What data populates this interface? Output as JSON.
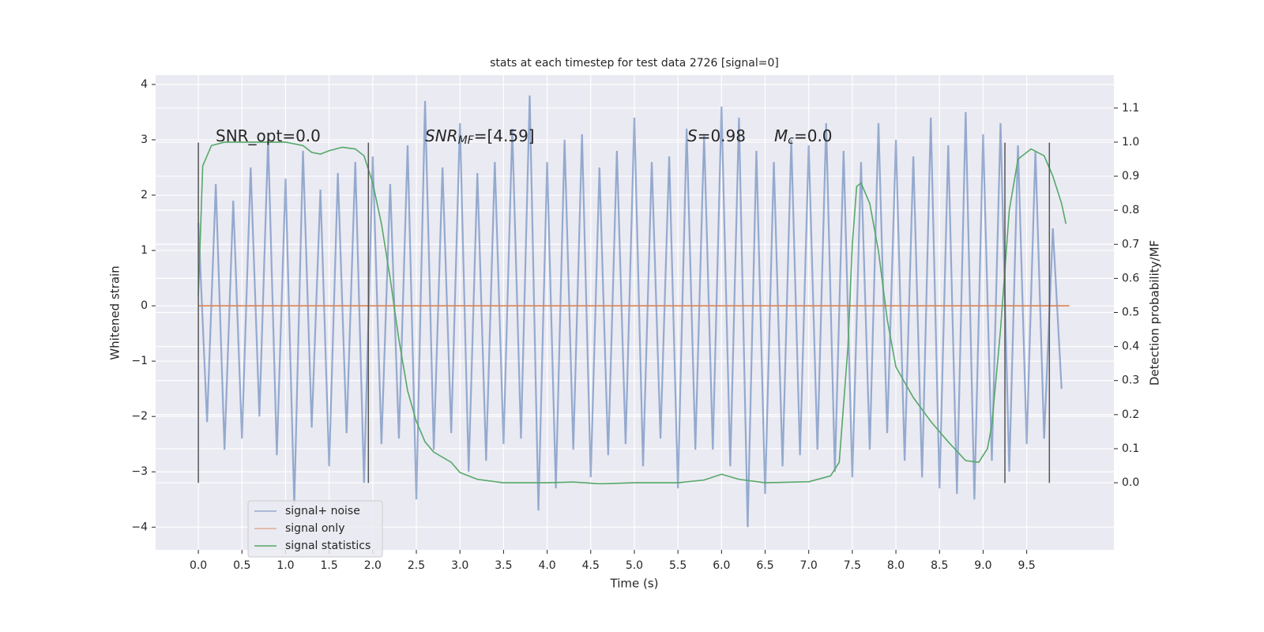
{
  "chart_data": {
    "type": "line",
    "title": "stats at each timestep for test data 2726 [signal=0]",
    "xlabel": "Time (s)",
    "ylabel": "Whitened strain",
    "y2label": "Detection probability/MF",
    "xlim": [
      -0.49,
      10.5
    ],
    "ylim": [
      -4.41,
      4.17
    ],
    "y2lim": [
      -0.197,
      1.197
    ],
    "grid": true,
    "legend": "lower left",
    "xticks": [
      {
        "value": 0,
        "label": "0.0"
      },
      {
        "value": 0.5,
        "label": "0.5"
      },
      {
        "value": 1,
        "label": "1.0"
      },
      {
        "value": 1.5,
        "label": "1.5"
      },
      {
        "value": 2,
        "label": "2.0"
      },
      {
        "value": 2.5,
        "label": "2.5"
      },
      {
        "value": 3,
        "label": "3.0"
      },
      {
        "value": 3.5,
        "label": "3.5"
      },
      {
        "value": 4,
        "label": "4.0"
      },
      {
        "value": 4.5,
        "label": "4.5"
      },
      {
        "value": 5,
        "label": "5.0"
      },
      {
        "value": 5.5,
        "label": "5.5"
      },
      {
        "value": 6,
        "label": "6.0"
      },
      {
        "value": 6.5,
        "label": "6.5"
      },
      {
        "value": 7,
        "label": "7.0"
      },
      {
        "value": 7.5,
        "label": "7.5"
      },
      {
        "value": 8,
        "label": "8.0"
      },
      {
        "value": 8.5,
        "label": "8.5"
      },
      {
        "value": 9,
        "label": "9.0"
      },
      {
        "value": 9.5,
        "label": "9.5"
      }
    ],
    "yticks": [
      {
        "value": -4,
        "label": "−4"
      },
      {
        "value": -3,
        "label": "−3"
      },
      {
        "value": -2,
        "label": "−2"
      },
      {
        "value": -1,
        "label": "−1"
      },
      0,
      1,
      2,
      3,
      4
    ],
    "y2ticks": [
      {
        "value": 0,
        "label": "0.0"
      },
      {
        "value": 0.1,
        "label": "0.1"
      },
      {
        "value": 0.2,
        "label": "0.2"
      },
      {
        "value": 0.3,
        "label": "0.3"
      },
      {
        "value": 0.4,
        "label": "0.4"
      },
      {
        "value": 0.5,
        "label": "0.5"
      },
      {
        "value": 0.6,
        "label": "0.6"
      },
      {
        "value": 0.7,
        "label": "0.7"
      },
      {
        "value": 0.8,
        "label": "0.8"
      },
      {
        "value": 0.9,
        "label": "0.9"
      },
      {
        "value": 1,
        "label": "1.0"
      },
      {
        "value": 1.1,
        "label": "1.1"
      }
    ],
    "annotations": [
      {
        "main": "SNR_opt=0.0"
      },
      {
        "main": "SNR",
        "sub": "MF",
        "rest": "=[4.59]"
      },
      {
        "main": "S",
        "rest": "=0.98"
      },
      {
        "main": "M",
        "sub": "c",
        "rest": "=0.0"
      }
    ],
    "vlines": {
      "x": [
        0,
        1.95,
        9.25,
        9.76
      ],
      "ymin": -3.2,
      "ymax": 2.95,
      "color": "#555555"
    },
    "series": [
      {
        "name": "signal+ noise",
        "color": "#4c72b0",
        "x": [
          0,
          0.1,
          0.2,
          0.3,
          0.4,
          0.5,
          0.6,
          0.7,
          0.8,
          0.9,
          1,
          1.1,
          1.2,
          1.3,
          1.4,
          1.5,
          1.6,
          1.7,
          1.8,
          1.9,
          2,
          2.1,
          2.2,
          2.3,
          2.4,
          2.5,
          2.6,
          2.7,
          2.8,
          2.9,
          3,
          3.1,
          3.2,
          3.3,
          3.4,
          3.5,
          3.6,
          3.7,
          3.8,
          3.9,
          4,
          4.1,
          4.2,
          4.3,
          4.4,
          4.5,
          4.6,
          4.7,
          4.8,
          4.9,
          5,
          5.1,
          5.2,
          5.3,
          5.4,
          5.5,
          5.6,
          5.7,
          5.8,
          5.9,
          6,
          6.1,
          6.2,
          6.3,
          6.4,
          6.5,
          6.6,
          6.7,
          6.8,
          6.9,
          7,
          7.1,
          7.2,
          7.3,
          7.4,
          7.5,
          7.6,
          7.7,
          7.8,
          7.9,
          8,
          8.1,
          8.2,
          8.3,
          8.4,
          8.5,
          8.6,
          8.7,
          8.8,
          8.9,
          9,
          9.1,
          9.2,
          9.3,
          9.4,
          9.5,
          9.6,
          9.7,
          9.8,
          9.9
        ],
        "values": [
          1.5,
          -2.1,
          2.2,
          -2.6,
          1.9,
          -2.4,
          2.5,
          -2.0,
          3.0,
          -2.7,
          2.3,
          -3.6,
          2.8,
          -2.2,
          2.1,
          -2.9,
          2.4,
          -2.3,
          2.6,
          -3.2,
          2.7,
          -2.5,
          2.2,
          -2.4,
          2.9,
          -3.5,
          3.7,
          -2.6,
          2.5,
          -2.3,
          3.3,
          -3.0,
          2.4,
          -2.8,
          2.6,
          -2.5,
          3.2,
          -2.4,
          3.8,
          -3.7,
          2.6,
          -3.3,
          3.0,
          -2.6,
          3.1,
          -3.1,
          2.5,
          -2.7,
          2.8,
          -2.5,
          3.4,
          -2.9,
          2.6,
          -2.4,
          2.7,
          -3.3,
          3.2,
          -2.6,
          3.1,
          -2.6,
          3.6,
          -2.9,
          3.4,
          -4.0,
          2.8,
          -3.4,
          2.6,
          -2.9,
          3.0,
          -2.7,
          2.9,
          -2.6,
          3.3,
          -3.0,
          2.8,
          -3.1,
          2.6,
          -2.6,
          3.3,
          -2.3,
          3.0,
          -2.8,
          2.7,
          -3.1,
          3.4,
          -3.3,
          2.9,
          -3.4,
          3.5,
          -3.5,
          3.1,
          -2.8,
          3.3,
          -3.0,
          2.9,
          -2.5,
          2.8,
          -2.4,
          1.4,
          -1.5
        ]
      },
      {
        "name": "signal only",
        "color": "#dd8452",
        "x": [
          0,
          9.99
        ],
        "values": [
          0,
          0
        ]
      },
      {
        "name": "signal statistics",
        "color": "#55a868",
        "axis": "y2",
        "x": [
          0,
          0.05,
          0.15,
          0.3,
          0.6,
          1.0,
          1.2,
          1.3,
          1.4,
          1.5,
          1.65,
          1.8,
          1.9,
          2.0,
          2.1,
          2.2,
          2.3,
          2.4,
          2.5,
          2.6,
          2.7,
          2.9,
          3.0,
          3.2,
          3.5,
          4.0,
          4.3,
          4.6,
          5.0,
          5.5,
          5.8,
          6.0,
          6.2,
          6.5,
          7.0,
          7.25,
          7.35,
          7.45,
          7.5,
          7.55,
          7.6,
          7.7,
          7.8,
          7.9,
          8.0,
          8.2,
          8.4,
          8.6,
          8.8,
          8.95,
          9.05,
          9.1,
          9.2,
          9.3,
          9.4,
          9.55,
          9.7,
          9.8,
          9.9,
          9.95
        ],
        "values": [
          0.55,
          0.93,
          0.99,
          1.0,
          1.0,
          1.0,
          0.99,
          0.97,
          0.965,
          0.975,
          0.985,
          0.98,
          0.96,
          0.88,
          0.76,
          0.6,
          0.42,
          0.27,
          0.18,
          0.12,
          0.09,
          0.06,
          0.03,
          0.01,
          0.0,
          0.0,
          0.002,
          -0.003,
          0.0,
          0.0,
          0.008,
          0.025,
          0.01,
          0.0,
          0.003,
          0.02,
          0.06,
          0.4,
          0.7,
          0.87,
          0.88,
          0.82,
          0.68,
          0.48,
          0.34,
          0.25,
          0.18,
          0.12,
          0.065,
          0.06,
          0.1,
          0.17,
          0.45,
          0.8,
          0.95,
          0.98,
          0.96,
          0.9,
          0.82,
          0.76
        ]
      }
    ]
  }
}
